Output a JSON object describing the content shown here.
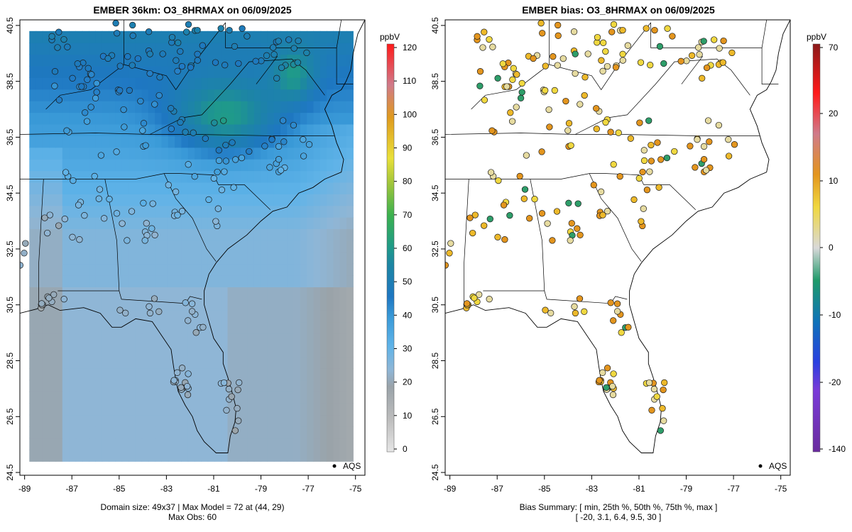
{
  "chart_data": [
    {
      "type": "heatmap",
      "title": "EMBER 36km: O3_8HRMAX on 06/09/2025",
      "xlabel": "",
      "ylabel": "",
      "xlim": [
        -89.2,
        -74.6
      ],
      "ylim": [
        24.4,
        40.7
      ],
      "x_ticks": [
        -89,
        -87,
        -85,
        -83,
        -81,
        -79,
        -77,
        -75
      ],
      "y_ticks": [
        24.5,
        26.5,
        28.5,
        30.5,
        32.5,
        34.5,
        36.5,
        38.5,
        40.5
      ],
      "colorbar": {
        "unit": "ppbV",
        "min": 0,
        "max": 120,
        "ticks": [
          0,
          10,
          20,
          30,
          40,
          50,
          60,
          70,
          80,
          90,
          100,
          110,
          120
        ]
      },
      "legend": {
        "marker": "AQS",
        "position": "bottom-right"
      },
      "footer": [
        "Domain size: 49x37 | Max Model = 72 at (44, 29)",
        "Max Obs: 60"
      ],
      "grid": false
    },
    {
      "type": "scatter",
      "title": "EMBER bias: O3_8HRMAX on 06/09/2025",
      "xlabel": "",
      "ylabel": "",
      "xlim": [
        -89.2,
        -74.6
      ],
      "ylim": [
        24.4,
        40.7
      ],
      "x_ticks": [
        -89,
        -87,
        -85,
        -83,
        -81,
        -79,
        -77,
        -75
      ],
      "y_ticks": [
        24.5,
        26.5,
        28.5,
        30.5,
        32.5,
        34.5,
        36.5,
        38.5,
        40.5
      ],
      "colorbar": {
        "unit": "ppbV",
        "ticks": [
          -140,
          -20,
          -10,
          0,
          10,
          20,
          70
        ]
      },
      "legend": {
        "marker": "AQS",
        "position": "bottom-right"
      },
      "footer": [
        "Bias Summary: [ min, 25th %, 50th %, 75th %, max ]",
        "[ -20,   3.1,   6.4,   9.5,   30 ]"
      ],
      "bias_summary": {
        "min": -20,
        "p25": 3.1,
        "p50": 6.4,
        "p75": 9.5,
        "max": 30
      },
      "grid": false
    }
  ]
}
